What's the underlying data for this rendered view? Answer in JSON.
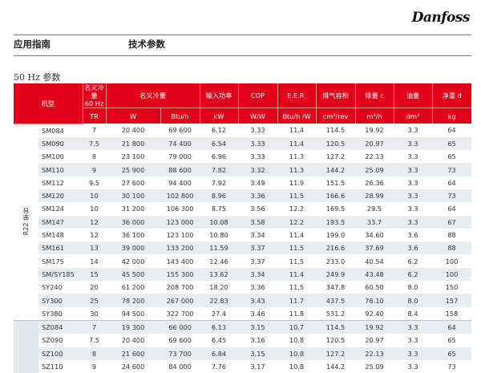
{
  "brand": "Danfoss",
  "header": {
    "left": "应用指南",
    "right": "技术参数"
  },
  "subtitle": "50 Hz 参数",
  "table": {
    "h": {
      "model": "机型",
      "tr": "名义冷量\n60 Hz",
      "cap": "名义冷量",
      "power": "输入功率",
      "cop": "COP",
      "eer": "E.E.R.",
      "disp": "排气容积",
      "flow": "排量 c",
      "oil": "油量",
      "weight": "净重 d"
    },
    "u": {
      "tr": "TR",
      "w": "W",
      "btu": "Btu/h",
      "kw": "kW",
      "ww": "W/W",
      "eer": "Btu/h /W",
      "disp": "cm³/rev",
      "flow": "m³/h",
      "oil": "dm³",
      "kg": "kg"
    },
    "group_label": "R22 单台",
    "rows": [
      [
        "SM084",
        "7",
        "20 400",
        "69 600",
        "6.12",
        "3.33",
        "11.4",
        "114.5",
        "19.92",
        "3.3",
        "64"
      ],
      [
        "SM090",
        "7.5",
        "21 800",
        "74 400",
        "6.54",
        "3.33",
        "11.4",
        "120.5",
        "20.97",
        "3.3",
        "65"
      ],
      [
        "SM100",
        "8",
        "23 100",
        "79 000",
        "6.96",
        "3.33",
        "11.3",
        "127.2",
        "22.13",
        "3.3",
        "65"
      ],
      [
        "SM110",
        "9",
        "25 900",
        "88 600",
        "7.82",
        "3.32",
        "11.3",
        "144.2",
        "25.09",
        "3.3",
        "73"
      ],
      [
        "SM112",
        "9.5",
        "27 600",
        "94 400",
        "7.92",
        "3.49",
        "11.9",
        "151.5",
        "26.36",
        "3.3",
        "64"
      ],
      [
        "SM120",
        "10",
        "30 100",
        "102 800",
        "8.96",
        "3.36",
        "11.5",
        "166.6",
        "28.99",
        "3.3",
        "73"
      ],
      [
        "SM124",
        "10",
        "31 200",
        "106 300",
        "8.75",
        "3.56",
        "12.2",
        "169.5",
        "29.5",
        "3.3",
        "64"
      ],
      [
        "SM147",
        "12",
        "36 000",
        "123 000",
        "10.08",
        "3.58",
        "12.2",
        "193.5",
        "33.7",
        "3.3",
        "67"
      ],
      [
        "SM148",
        "12",
        "36 100",
        "123 100",
        "10.80",
        "3.34",
        "11.4",
        "199.0",
        "34.60",
        "3.6",
        "88"
      ],
      [
        "SM161",
        "13",
        "39 000",
        "133 200",
        "11.59",
        "3.37",
        "11.5",
        "216.6",
        "37.69",
        "3.6",
        "88"
      ],
      [
        "SM175",
        "14",
        "42 000",
        "143 400",
        "12.46",
        "3.37",
        "11.5",
        "233.0",
        "40.54",
        "6.2",
        "100"
      ],
      [
        "SM/SY185",
        "15",
        "45 500",
        "155 300",
        "13.62",
        "3.34",
        "11.4",
        "249.9",
        "43.48",
        "6.2",
        "100"
      ],
      [
        "SY240",
        "20",
        "61 200",
        "208 700",
        "18.20",
        "3.36",
        "11.5",
        "347.8",
        "60.50",
        "8.0",
        "150"
      ],
      [
        "SY300",
        "25",
        "78 200",
        "267 000",
        "22.83",
        "3.43",
        "11.7",
        "437.5",
        "76.10",
        "8.0",
        "157"
      ],
      [
        "SY380",
        "30",
        "94 500",
        "322 700",
        "27.4",
        "3.46",
        "11.8",
        "531.2",
        "92.40",
        "8.4",
        "158"
      ],
      [
        "SZ084",
        "7",
        "19 300",
        "66 000",
        "6.13",
        "3.15",
        "10.7",
        "114.5",
        "19.92",
        "3.3",
        "64"
      ],
      [
        "SZ090",
        "7.5",
        "20 400",
        "69 600",
        "6.45",
        "3.16",
        "10.8",
        "120.5",
        "20.97",
        "3.3",
        "65"
      ],
      [
        "SZ100",
        "8",
        "21 600",
        "73 700",
        "6.84",
        "3.15",
        "10.8",
        "127.2",
        "22.13",
        "3.3",
        "65"
      ],
      [
        "SZ110",
        "9",
        "24 600",
        "84 000",
        "7.76",
        "3.17",
        "10.8",
        "144.2",
        "25.09",
        "3.3",
        "73"
      ]
    ]
  }
}
